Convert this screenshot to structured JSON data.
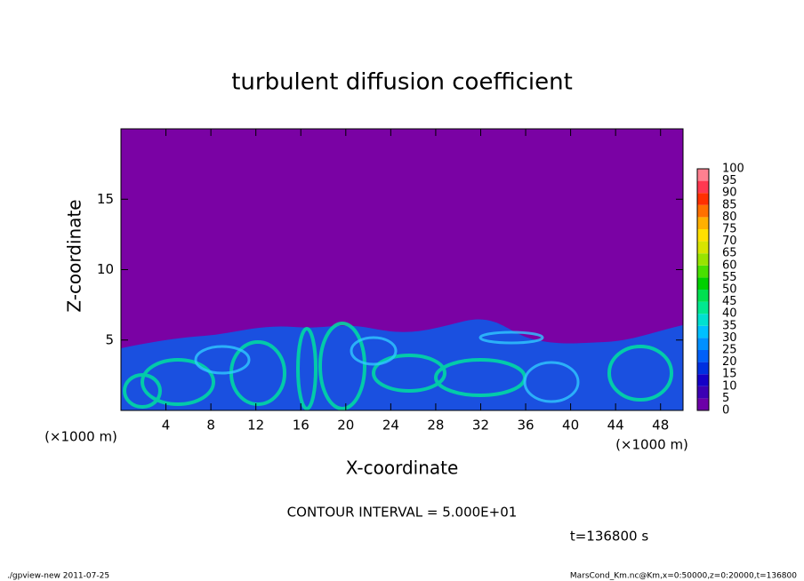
{
  "chart_data": {
    "type": "contour",
    "title": "turbulent diffusion coefficient",
    "x_label": "X-coordinate",
    "y_label": "Z-coordinate",
    "x_unit": "(×1000 m)",
    "xlim": [
      0,
      50
    ],
    "xticks": [
      4,
      8,
      12,
      16,
      20,
      24,
      28,
      32,
      36,
      40,
      44,
      48
    ],
    "ylim": [
      0,
      20
    ],
    "yticks": [
      5,
      10,
      15
    ],
    "background_color": "#7a02a4",
    "colorbar": {
      "levels": [
        0,
        5,
        10,
        15,
        20,
        25,
        30,
        35,
        40,
        45,
        50,
        55,
        60,
        65,
        70,
        75,
        80,
        85,
        90,
        95,
        100
      ],
      "colors": [
        "#6c00a8",
        "#3c00b4",
        "#1400c8",
        "#0030e0",
        "#0060f8",
        "#0090ff",
        "#00c0ff",
        "#00e0d0",
        "#00e890",
        "#00e050",
        "#00d000",
        "#48e000",
        "#98e400",
        "#d8e400",
        "#ffe000",
        "#ffb000",
        "#ff7000",
        "#ff3000",
        "#ff3850",
        "#ff8090"
      ]
    },
    "annotations": {
      "contour_interval": "CONTOUR INTERVAL = 5.000E+01",
      "time": "t=136800 s",
      "footer_left": "./gpview-new  2011-07-25",
      "footer_right": "MarsCond_Km.nc@Km,x=0:50000,z=0:20000,t=136800"
    }
  }
}
